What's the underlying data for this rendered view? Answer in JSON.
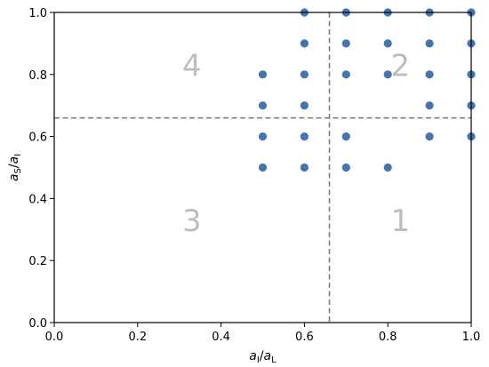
{
  "chart_data": {
    "type": "scatter",
    "xlim": [
      0.0,
      1.0
    ],
    "ylim": [
      0.0,
      1.0
    ],
    "xticks": [
      "0.0",
      "0.2",
      "0.4",
      "0.6",
      "0.8",
      "1.0"
    ],
    "yticks": [
      "0.0",
      "0.2",
      "0.4",
      "0.6",
      "0.8",
      "1.0"
    ],
    "xlabel": {
      "main": "a",
      "sub": "I",
      "sep": "/",
      "main2": "a",
      "sub2": "L"
    },
    "ylabel": {
      "main": "a",
      "sub": "S",
      "sep": "/",
      "main2": "a",
      "sub2": "I"
    },
    "reference_lines": {
      "x": 0.66,
      "y": 0.66,
      "style": "dashed",
      "color": "#808080"
    },
    "region_labels": [
      {
        "text": "1",
        "x": 0.83,
        "y": 0.33
      },
      {
        "text": "2",
        "x": 0.83,
        "y": 0.83
      },
      {
        "text": "3",
        "x": 0.33,
        "y": 0.33
      },
      {
        "text": "4",
        "x": 0.33,
        "y": 0.83
      }
    ],
    "marker_color": "#4575ae",
    "points": [
      [
        0.5,
        0.5
      ],
      [
        0.5,
        0.6
      ],
      [
        0.5,
        0.7
      ],
      [
        0.5,
        0.8
      ],
      [
        0.6,
        0.5
      ],
      [
        0.6,
        0.6
      ],
      [
        0.6,
        0.7
      ],
      [
        0.6,
        0.8
      ],
      [
        0.6,
        0.9
      ],
      [
        0.6,
        1.0
      ],
      [
        0.7,
        0.5
      ],
      [
        0.7,
        0.6
      ],
      [
        0.7,
        0.8
      ],
      [
        0.7,
        0.9
      ],
      [
        0.7,
        1.0
      ],
      [
        0.8,
        0.5
      ],
      [
        0.8,
        0.8
      ],
      [
        0.8,
        0.9
      ],
      [
        0.8,
        1.0
      ],
      [
        0.9,
        0.6
      ],
      [
        0.9,
        0.7
      ],
      [
        0.9,
        0.8
      ],
      [
        0.9,
        0.9
      ],
      [
        0.9,
        1.0
      ],
      [
        1.0,
        0.6
      ],
      [
        1.0,
        0.7
      ],
      [
        1.0,
        0.8
      ],
      [
        1.0,
        0.9
      ],
      [
        1.0,
        1.0
      ]
    ]
  }
}
